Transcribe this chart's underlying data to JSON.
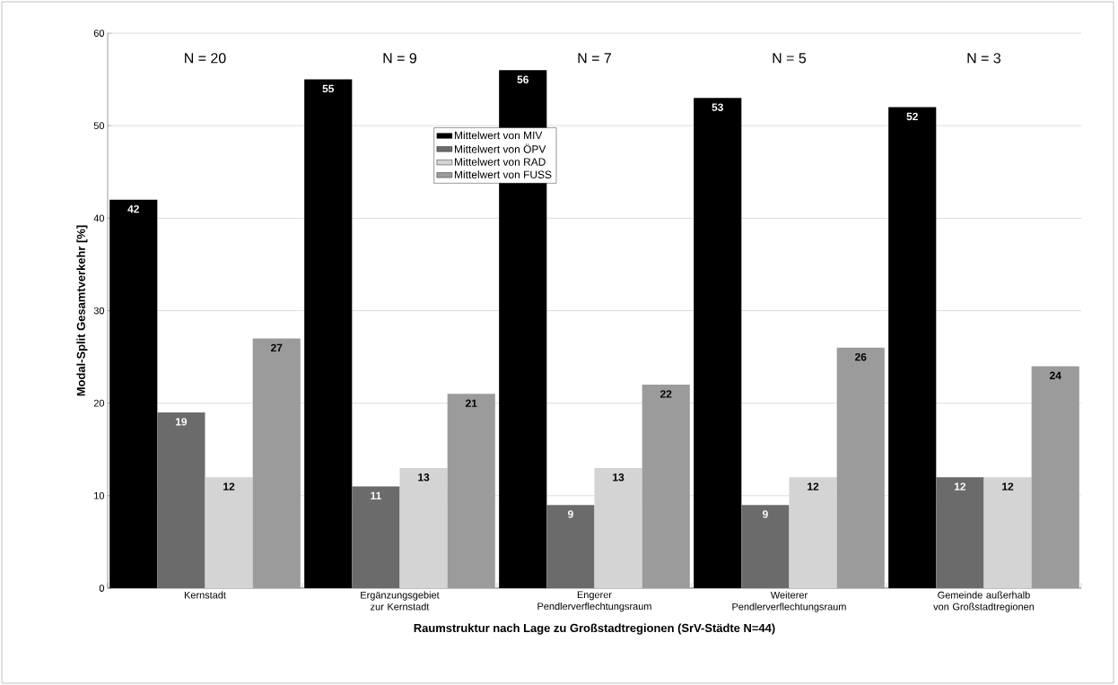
{
  "chart_data": {
    "type": "bar",
    "categories": [
      "Kernstadt",
      "Ergänzungsgebiet zur Kernstadt",
      "Engerer Pendlerverflechtungsraum",
      "Weiterer Pendlerverflechtungsraum",
      "Gemeinde außerhalb von Großstadtregionen"
    ],
    "series": [
      {
        "name": "Mittelwert von MIV",
        "color": "#000000",
        "values": [
          42,
          55,
          56,
          53,
          52
        ]
      },
      {
        "name": "Mittelwert von ÖPV",
        "color": "#6b6b6b",
        "values": [
          19,
          11,
          9,
          9,
          12
        ]
      },
      {
        "name": "Mittelwert von RAD",
        "color": "#d4d4d4",
        "values": [
          12,
          13,
          13,
          12,
          12
        ]
      },
      {
        "name": "Mittelwert von FUSS",
        "color": "#9b9b9b",
        "values": [
          27,
          21,
          22,
          26,
          24
        ]
      }
    ],
    "xlabel": "Raumstruktur nach Lage zu Großstadtregionen (SrV-Städte N=44)",
    "ylabel": "Modal-Split Gesamtverkehr [%]",
    "ylim": [
      0,
      60
    ],
    "yticks": [
      0,
      10,
      20,
      30,
      40,
      50,
      60
    ],
    "grid": "y",
    "legend": "top",
    "data_labels": true,
    "annotations": [
      "N = 20",
      "N = 9",
      "N = 7",
      "N = 5",
      "N = 3"
    ]
  }
}
